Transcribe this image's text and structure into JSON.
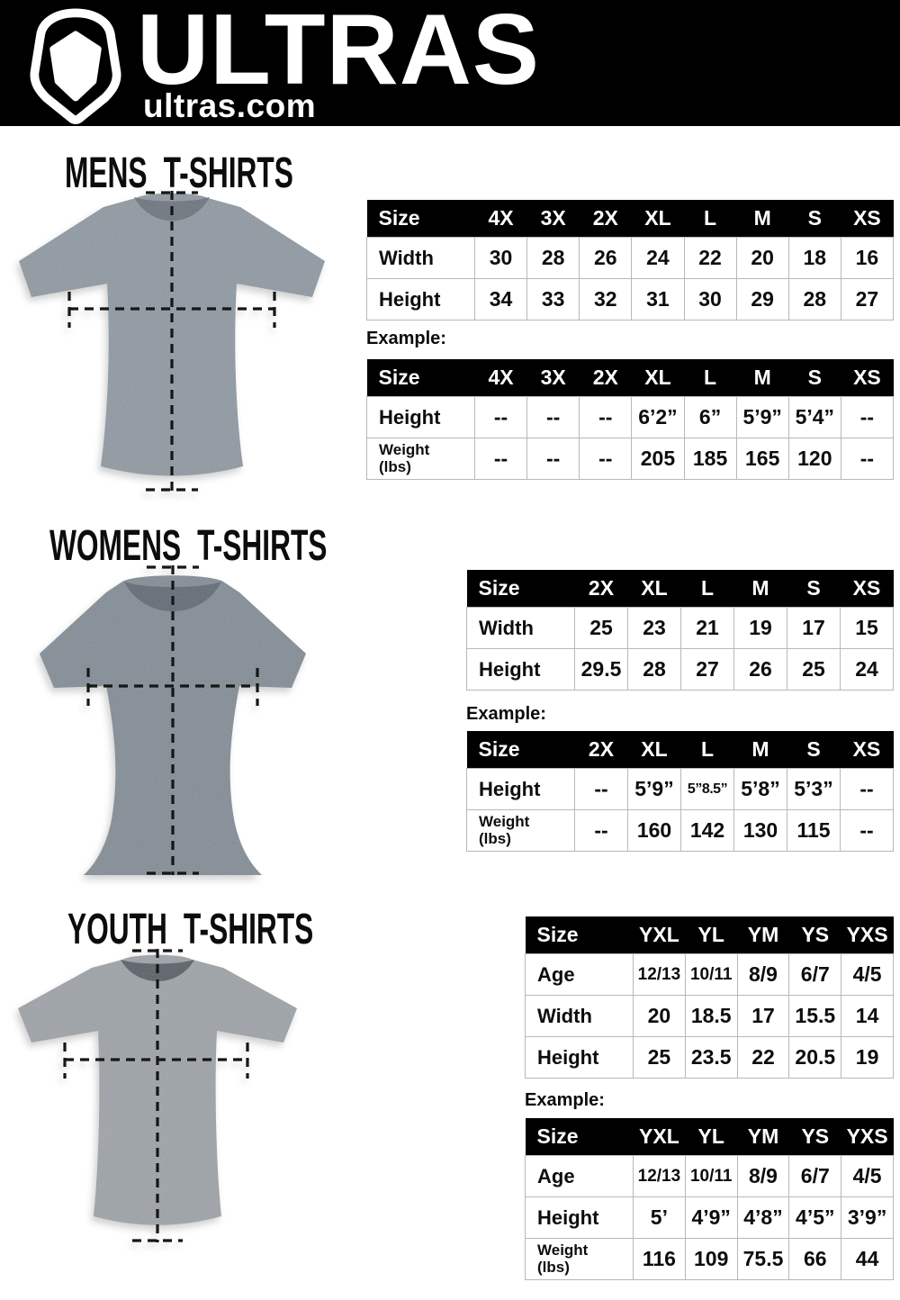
{
  "header": {
    "brand": "ULTRAS",
    "site": "ultras.com",
    "logo_icon": "pentagon-crest-icon"
  },
  "colors": {
    "header_bg": "#000000",
    "table_header_bg": "#000000",
    "table_header_text": "#ffffff",
    "table_border": "#b8b8b8",
    "measure_line": "#161616",
    "shirt_mens": "#8a939c",
    "shirt_womens": "#7e8790",
    "shirt_youth": "#989da2"
  },
  "sections": [
    {
      "id": "mens",
      "title": "MENS T-SHIRTS",
      "example_label": "Example:",
      "size_table": {
        "header": [
          "Size",
          "4X",
          "3X",
          "2X",
          "XL",
          "L",
          "M",
          "S",
          "XS"
        ],
        "rows": [
          [
            "Width",
            "30",
            "28",
            "26",
            "24",
            "22",
            "20",
            "18",
            "16"
          ],
          [
            "Height",
            "34",
            "33",
            "32",
            "31",
            "30",
            "29",
            "28",
            "27"
          ]
        ]
      },
      "example_table": {
        "header": [
          "Size",
          "4X",
          "3X",
          "2X",
          "XL",
          "L",
          "M",
          "S",
          "XS"
        ],
        "rows": [
          [
            "Height",
            "--",
            "--",
            "--",
            "6’2”",
            "6”",
            "5’9”",
            "5’4”",
            "--"
          ],
          [
            "Weight\n(lbs)",
            "--",
            "--",
            "--",
            "205",
            "185",
            "165",
            "120",
            "--"
          ]
        ]
      }
    },
    {
      "id": "womens",
      "title": "WOMENS T-SHIRTS",
      "example_label": "Example:",
      "size_table": {
        "header": [
          "Size",
          "2X",
          "XL",
          "L",
          "M",
          "S",
          "XS"
        ],
        "rows": [
          [
            "Width",
            "25",
            "23",
            "21",
            "19",
            "17",
            "15"
          ],
          [
            "Height",
            "29.5",
            "28",
            "27",
            "26",
            "25",
            "24"
          ]
        ]
      },
      "example_table": {
        "header": [
          "Size",
          "2X",
          "XL",
          "L",
          "M",
          "S",
          "XS"
        ],
        "rows": [
          [
            "Height",
            "--",
            "5’9”",
            "5”8.5”",
            "5’8”",
            "5’3”",
            "--"
          ],
          [
            "Weight\n(lbs)",
            "--",
            "160",
            "142",
            "130",
            "115",
            "--"
          ]
        ]
      }
    },
    {
      "id": "youth",
      "title": "YOUTH T-SHIRTS",
      "example_label": "Example:",
      "size_table": {
        "header": [
          "Size",
          "YXL",
          "YL",
          "YM",
          "YS",
          "YXS"
        ],
        "rows": [
          [
            "Age",
            "12/13",
            "10/11",
            "8/9",
            "6/7",
            "4/5"
          ],
          [
            "Width",
            "20",
            "18.5",
            "17",
            "15.5",
            "14"
          ],
          [
            "Height",
            "25",
            "23.5",
            "22",
            "20.5",
            "19"
          ]
        ]
      },
      "example_table": {
        "header": [
          "Size",
          "YXL",
          "YL",
          "YM",
          "YS",
          "YXS"
        ],
        "rows": [
          [
            "Age",
            "12/13",
            "10/11",
            "8/9",
            "6/7",
            "4/5"
          ],
          [
            "Height",
            "5’",
            "4’9”",
            "4’8”",
            "4’5”",
            "3’9”"
          ],
          [
            "Weight\n(lbs)",
            "116",
            "109",
            "75.5",
            "66",
            "44"
          ]
        ]
      }
    }
  ]
}
